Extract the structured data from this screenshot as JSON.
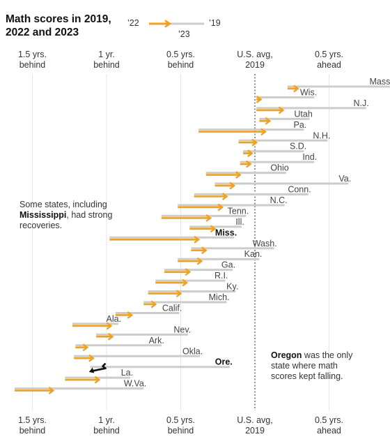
{
  "chart_data": {
    "type": "dumbbell-arrow",
    "title": [
      "Math scores in 2019,",
      "2022 and 2023"
    ],
    "legend": {
      "label_2022": "’22",
      "label_2019": "’19",
      "label_2023": "’23"
    },
    "x_unit": "years relative to U.S. average 2019 (negative = behind)",
    "xlim": [
      -1.64,
      0.91
    ],
    "axis_ticks": [
      {
        "value": -1.5,
        "line1": "1.5 yrs.",
        "line2": "behind"
      },
      {
        "value": -1.0,
        "line1": "1 yr.",
        "line2": "behind"
      },
      {
        "value": -0.5,
        "line1": "0.5 yrs.",
        "line2": "behind"
      },
      {
        "value": 0.0,
        "line1": "U.S. avg,",
        "line2": "2019"
      },
      {
        "value": 0.5,
        "line1": "0.5 yrs.",
        "line2": "ahead"
      }
    ],
    "colors": {
      "score_2019": "#cccccc",
      "change_2022_2023": "#f0a21e",
      "highlight": "#111111",
      "reference_line": "#555555"
    },
    "states": [
      {
        "name": "Mass.",
        "s2019": 0.91,
        "s2022": 0.22,
        "s2023": 0.29
      },
      {
        "name": "Wis.",
        "s2019": 0.4,
        "s2022": 0.01,
        "s2023": 0.04
      },
      {
        "name": "N.J.",
        "s2019": 0.75,
        "s2022": 0.01,
        "s2023": 0.19
      },
      {
        "name": "Utah",
        "s2019": 0.37,
        "s2022": 0.03,
        "s2023": 0.1
      },
      {
        "name": "Pa.",
        "s2019": 0.33,
        "s2022": -0.38,
        "s2023": 0.07
      },
      {
        "name": "N.H.",
        "s2019": 0.49,
        "s2022": -0.11,
        "s2023": 0.01
      },
      {
        "name": "S.D.",
        "s2019": 0.33,
        "s2022": -0.08,
        "s2023": -0.02
      },
      {
        "name": "Ind.",
        "s2019": 0.4,
        "s2022": -0.1,
        "s2023": -0.03
      },
      {
        "name": "Ohio",
        "s2019": 0.21,
        "s2022": -0.33,
        "s2023": -0.1
      },
      {
        "name": "Va.",
        "s2019": 0.63,
        "s2022": -0.27,
        "s2023": -0.14
      },
      {
        "name": "Conn.",
        "s2019": 0.36,
        "s2022": -0.41,
        "s2023": -0.19
      },
      {
        "name": "N.C.",
        "s2019": 0.2,
        "s2022": -0.52,
        "s2023": -0.22
      },
      {
        "name": "Tenn.",
        "s2019": -0.06,
        "s2022": -0.63,
        "s2023": -0.3
      },
      {
        "name": "Ill.",
        "s2019": -0.09,
        "s2022": -0.44,
        "s2023": -0.27
      },
      {
        "name": "Miss.",
        "s2019": -0.14,
        "s2022": -0.98,
        "s2023": -0.38,
        "highlight": true
      },
      {
        "name": "Wash.",
        "s2019": 0.13,
        "s2022": -0.43,
        "s2023": -0.33
      },
      {
        "name": "Kan.",
        "s2019": 0.03,
        "s2022": -0.52,
        "s2023": -0.36
      },
      {
        "name": "Ga.",
        "s2019": -0.15,
        "s2022": -0.61,
        "s2023": -0.44
      },
      {
        "name": "R.I.",
        "s2019": -0.2,
        "s2022": -0.67,
        "s2023": -0.46
      },
      {
        "name": "Ky.",
        "s2019": -0.13,
        "s2022": -0.72,
        "s2023": -0.5
      },
      {
        "name": "Mich.",
        "s2019": -0.19,
        "s2022": -0.75,
        "s2023": -0.67
      },
      {
        "name": "Calif.",
        "s2019": -0.51,
        "s2022": -0.94,
        "s2023": -0.83
      },
      {
        "name": "Ala.",
        "s2019": -0.92,
        "s2022": -1.23,
        "s2023": -0.97
      },
      {
        "name": "Nev.",
        "s2019": -0.45,
        "s2022": -1.07,
        "s2023": -0.96
      },
      {
        "name": "Ark.",
        "s2019": -0.63,
        "s2022": -1.21,
        "s2023": -1.13
      },
      {
        "name": "Okla.",
        "s2019": -0.37,
        "s2022": -1.22,
        "s2023": -1.09
      },
      {
        "name": "Ore.",
        "s2019": -0.17,
        "s2022": -1.04,
        "s2023": -1.11,
        "highlight": true
      },
      {
        "name": "La.",
        "s2019": -0.84,
        "s2022": -1.28,
        "s2023": -1.05
      },
      {
        "name": "W.Va.",
        "s2019": -0.75,
        "s2022": -1.62,
        "s2023": -1.36
      }
    ],
    "annotations": {
      "mississippi": {
        "line1": "Some states, including",
        "bold": "Mississippi",
        "line2_rest": ", had strong",
        "line3": "recoveries."
      },
      "oregon": {
        "bold": "Oregon",
        "line1_rest": " was the only",
        "line2": "state where math",
        "line3": "scores kept falling."
      }
    }
  }
}
